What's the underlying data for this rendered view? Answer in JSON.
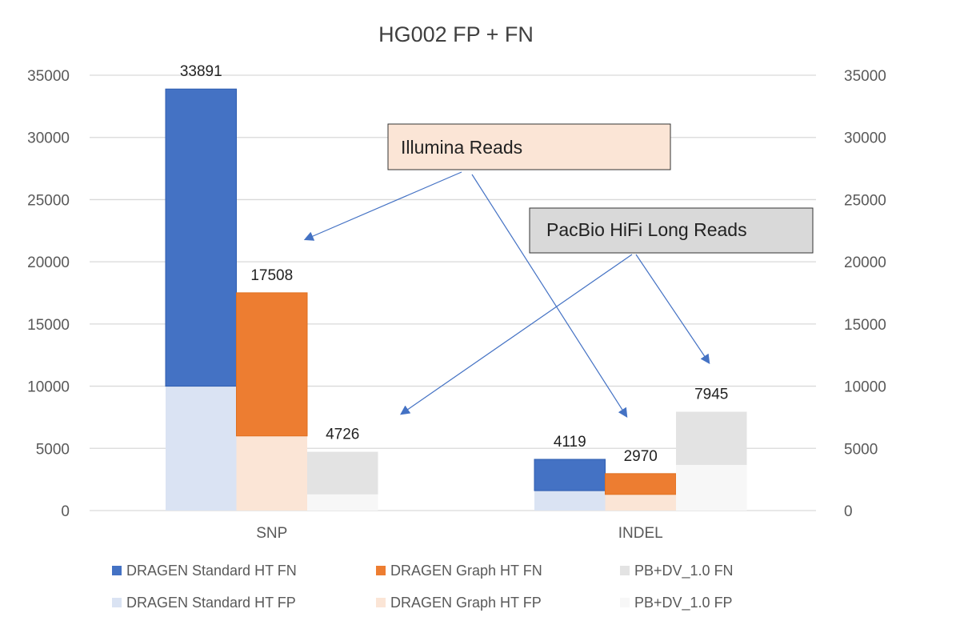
{
  "chart_data": {
    "type": "bar",
    "stacked": true,
    "title": "HG002 FP + FN",
    "categories": [
      "SNP",
      "INDEL"
    ],
    "ylim": [
      0,
      35000
    ],
    "yticks": [
      0,
      5000,
      10000,
      15000,
      20000,
      25000,
      30000,
      35000
    ],
    "secondary_axis": true,
    "grid": true,
    "legend_position": "bottom",
    "groups": [
      {
        "fn_name": "DRAGEN Standard HT FN",
        "fp_name": "DRAGEN Standard HT FP",
        "fn_color": "#4472c4",
        "fp_color": "#dae3f3",
        "fn": [
          23891,
          2519
        ],
        "fp": [
          10000,
          1600
        ],
        "totals": [
          33891,
          4119
        ]
      },
      {
        "fn_name": "DRAGEN Graph HT FN",
        "fp_name": "DRAGEN Graph HT FP",
        "fn_color": "#ed7d31",
        "fp_color": "#fbe5d6",
        "fn": [
          11508,
          1670
        ],
        "fp": [
          6000,
          1300
        ],
        "totals": [
          17508,
          2970
        ]
      },
      {
        "fn_name": "PB+DV_1.0 FN",
        "fp_name": "PB+DV_1.0 FP",
        "fn_color": "#e3e3e3",
        "fp_color": "#f7f7f7",
        "fn": [
          3426,
          4275
        ],
        "fp": [
          1300,
          3670
        ],
        "totals": [
          4726,
          7945
        ]
      }
    ],
    "annotations": [
      {
        "text": "Illumina Reads",
        "fill": "#fbe5d6"
      },
      {
        "text": "PacBio HiFi Long Reads",
        "fill": "#d9d9d9"
      }
    ]
  }
}
